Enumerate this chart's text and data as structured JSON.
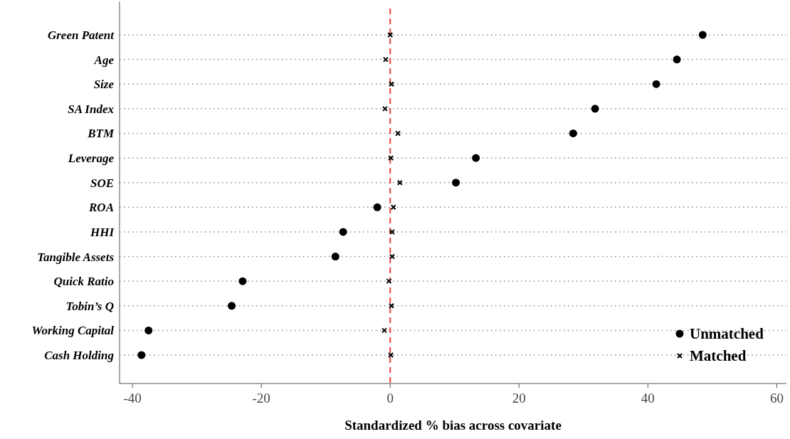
{
  "chart_data": {
    "type": "scatter",
    "orientation": "horizontal",
    "xlabel": "Standardized % bias across covariate",
    "categories": [
      "Green Patent",
      "Age",
      "Size",
      "SA Index",
      "BTM",
      "Leverage",
      "SOE",
      "ROA",
      "HHI",
      "Tangible Assets",
      "Quick Ratio",
      "Tobin’s Q",
      "Working Capital",
      "Cash Holding"
    ],
    "series": [
      {
        "name": "Unmatched",
        "color": "#000000",
        "marker": "circle",
        "values": [
          48.5,
          44.5,
          41.3,
          31.8,
          28.4,
          13.3,
          10.2,
          -2.0,
          -7.3,
          -8.5,
          -22.9,
          -24.6,
          -37.5,
          -38.6
        ]
      },
      {
        "name": "Matched",
        "color": "#000000",
        "marker": "cross",
        "values": [
          0.0,
          -0.7,
          0.2,
          -0.8,
          1.2,
          0.1,
          1.5,
          0.5,
          0.3,
          0.3,
          -0.2,
          0.2,
          -0.9,
          0.1
        ]
      }
    ],
    "xlim": [
      -42,
      61.5
    ],
    "xticks": [
      -40,
      -20,
      0,
      20,
      40,
      60
    ],
    "ref_lines": [
      {
        "axis": "x",
        "value": 0,
        "color": "#e8413c",
        "line_style": "dashed"
      }
    ],
    "grid": "y",
    "legend": "bottom right"
  }
}
